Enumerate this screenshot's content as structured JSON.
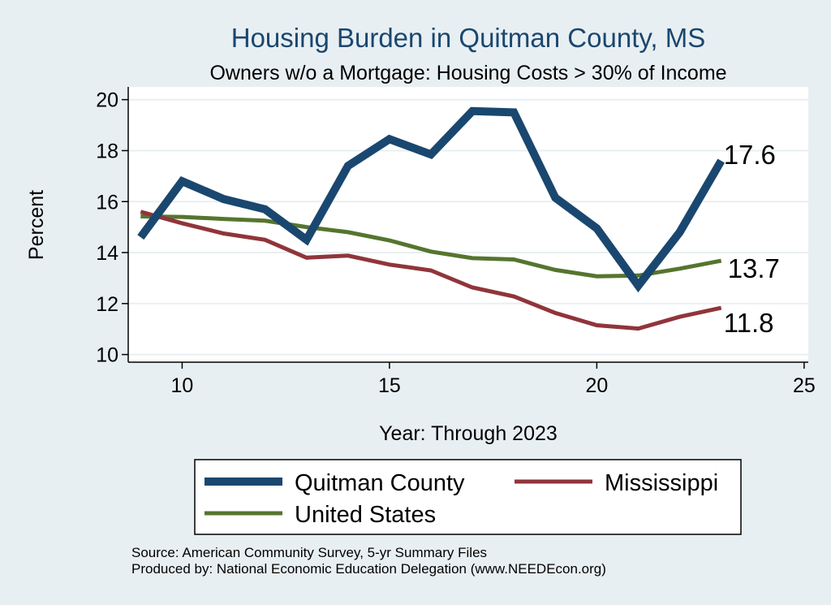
{
  "chart_data": {
    "type": "line",
    "title": "Housing Burden in Quitman County, MS",
    "subtitle": "Owners w/o a Mortgage: Housing Costs > 30% of Income",
    "xlabel": "Year: Through 2023",
    "ylabel": "Percent",
    "xlim": [
      8.7,
      25.1
    ],
    "ylim": [
      9.7,
      20.5
    ],
    "x_ticks": [
      10,
      15,
      20,
      25
    ],
    "y_ticks": [
      10,
      12,
      14,
      16,
      18,
      20
    ],
    "grid": true,
    "legend_position": "bottom",
    "series": [
      {
        "name": "Quitman County",
        "color": "#1a476f",
        "x": [
          9,
          10,
          11,
          12,
          13,
          14,
          15,
          16,
          17,
          18,
          19,
          20,
          21,
          22,
          23
        ],
        "values": [
          14.6,
          16.8,
          16.1,
          15.7,
          14.5,
          17.4,
          18.45,
          17.85,
          19.55,
          19.5,
          16.15,
          14.95,
          12.7,
          14.8,
          17.6
        ],
        "end_label": "17.6"
      },
      {
        "name": "Mississippi",
        "color": "#90353b",
        "x": [
          9,
          10,
          11,
          12,
          13,
          14,
          15,
          16,
          17,
          18,
          19,
          20,
          21,
          22,
          23
        ],
        "values": [
          15.6,
          15.15,
          14.75,
          14.5,
          13.8,
          13.88,
          13.53,
          13.3,
          12.63,
          12.28,
          11.63,
          11.15,
          11.02,
          11.48,
          11.83
        ],
        "end_label": "11.8"
      },
      {
        "name": "United States",
        "color": "#55752f",
        "x": [
          9,
          10,
          11,
          12,
          13,
          14,
          15,
          16,
          17,
          18,
          19,
          20,
          21,
          22,
          23
        ],
        "values": [
          15.42,
          15.4,
          15.32,
          15.25,
          15.0,
          14.8,
          14.48,
          14.04,
          13.78,
          13.73,
          13.32,
          13.07,
          13.1,
          13.37,
          13.68
        ],
        "end_label": "13.7"
      }
    ]
  },
  "footer": {
    "source": "Source: American Community Survey, 5-yr Summary Files",
    "produced_by": "Produced by: National Economic Education Delegation (www.NEEDEcon.org)"
  },
  "colors": {
    "background": "#e8eff2",
    "plot_background": "#ffffff",
    "title": "#1a476f",
    "grid": "#e8eff2"
  }
}
